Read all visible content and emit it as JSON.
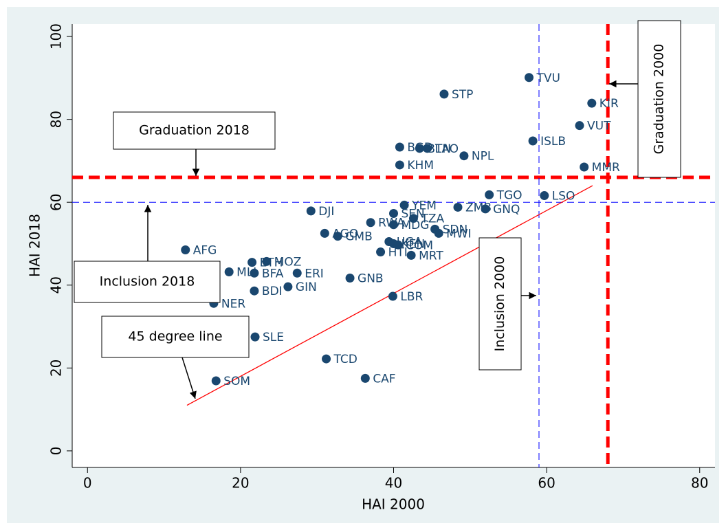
{
  "chart_data": {
    "type": "scatter",
    "x_label": "HAI 2000",
    "y_label": "HAI 2018",
    "xlim": [
      -2,
      82
    ],
    "ylim": [
      -4,
      103
    ],
    "xticks": [
      0,
      20,
      40,
      60,
      80
    ],
    "yticks": [
      0,
      20,
      40,
      60,
      80,
      100
    ],
    "color": "#1a476f",
    "labels": [
      "TVU",
      "KIR",
      "VUT",
      "STP",
      "ISLB",
      "MMR",
      "NPL",
      "BGD",
      "BTN",
      "LAO",
      "KHM",
      "TGO",
      "LSO",
      "YEM",
      "ZMB",
      "GNQ",
      "DJI",
      "SEN",
      "TZA",
      "RWA",
      "MDG",
      "SDN",
      "MWI",
      "AGO",
      "GMB",
      "UGA",
      "KEN",
      "COM",
      "HTI",
      "MRT",
      "AFG",
      "ETH",
      "MOZ",
      "MLI",
      "BFA",
      "ERI",
      "GNB",
      "GIN",
      "BDI",
      "LBR",
      "NER",
      "SLE",
      "TCD",
      "CAF",
      "SOM"
    ],
    "x": [
      57.7,
      65.9,
      64.3,
      46.6,
      58.2,
      64.9,
      49.2,
      40.8,
      43.4,
      44.4,
      40.8,
      52.5,
      59.7,
      41.4,
      48.4,
      52.0,
      29.2,
      40.0,
      42.6,
      37.0,
      40.0,
      45.4,
      45.9,
      31.0,
      32.7,
      39.4,
      40.0,
      40.6,
      38.3,
      42.3,
      12.8,
      21.5,
      23.4,
      18.5,
      21.8,
      27.4,
      34.3,
      26.2,
      21.8,
      39.9,
      16.5,
      21.9,
      31.2,
      36.3,
      16.8
    ],
    "values": [
      90.1,
      83.9,
      78.5,
      86.1,
      74.8,
      68.5,
      71.2,
      73.3,
      73.0,
      73.0,
      69.0,
      61.8,
      61.6,
      59.3,
      58.8,
      58.4,
      57.9,
      57.3,
      56.1,
      55.1,
      54.6,
      53.5,
      52.5,
      52.5,
      51.8,
      50.5,
      50.0,
      49.7,
      48.0,
      47.2,
      48.5,
      45.5,
      45.7,
      43.2,
      42.9,
      42.9,
      41.7,
      39.6,
      38.6,
      37.3,
      35.6,
      27.5,
      22.2,
      17.5,
      16.9
    ],
    "reference_lines": [
      {
        "axis": "y",
        "value": 66,
        "color": "#ff0000"
      },
      {
        "axis": "x",
        "value": 68,
        "color": "#ff0000"
      },
      {
        "axis": "y",
        "value": 60,
        "color": "#0000ff"
      },
      {
        "axis": "x",
        "value": 59,
        "color": "#0000ff"
      }
    ],
    "line_45": {
      "x": [
        13,
        66
      ],
      "y": [
        11,
        64
      ],
      "color": "#ff0000"
    },
    "annotations": [
      "Graduation 2018",
      "Inclusion 2018",
      "45 degree line",
      "Inclusion 2000",
      "Graduation 2000"
    ]
  }
}
